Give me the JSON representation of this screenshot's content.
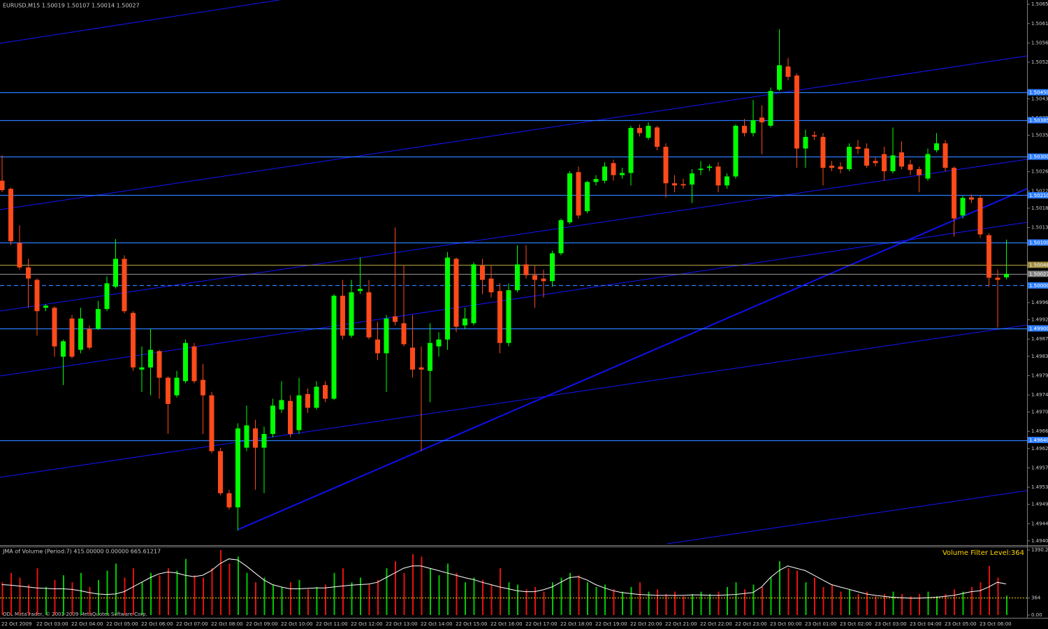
{
  "chart_data": [
    {
      "type": "candlestick",
      "title": "EURUSD,M15 1.50019 1.50107 1.50014 1.50027",
      "categories": [
        "22 Oct 2009",
        null,
        null,
        null,
        "22 Oct 03:00",
        null,
        null,
        null,
        "22 Oct 04:00",
        null,
        null,
        null,
        "22 Oct 05:00",
        null,
        null,
        null,
        "22 Oct 06:00",
        null,
        null,
        null,
        "22 Oct 07:00",
        null,
        null,
        null,
        "22 Oct 08:00",
        null,
        null,
        null,
        "22 Oct 09:00",
        null,
        null,
        null,
        "22 Oct 10:00",
        null,
        null,
        null,
        "22 Oct 11:00",
        null,
        null,
        null,
        "22 Oct 12:00",
        null,
        null,
        null,
        "22 Oct 13:00",
        null,
        null,
        null,
        "22 Oct 14:00",
        null,
        null,
        null,
        "22 Oct 15:00",
        null,
        null,
        null,
        "22 Oct 16:00",
        null,
        null,
        null,
        "22 Oct 17:00",
        null,
        null,
        null,
        "22 Oct 18:00",
        null,
        null,
        null,
        "22 Oct 19:00",
        null,
        null,
        null,
        "22 Oct 20:00",
        null,
        null,
        null,
        "22 Oct 21:00",
        null,
        null,
        null,
        "22 Oct 22:00",
        null,
        null,
        null,
        "22 Oct 23:00",
        null,
        null,
        null,
        "23 Oct 00:00",
        null,
        null,
        null,
        "23 Oct 01:00",
        null,
        null,
        null,
        "23 Oct 02:00",
        null,
        null,
        null,
        "23 Oct 03:00",
        null,
        null,
        null,
        "23 Oct 04:00",
        null,
        null,
        null,
        "23 Oct 05:00",
        null,
        null,
        null,
        "23 Oct 06:00",
        null,
        null,
        null
      ],
      "open": [
        1.50244,
        1.50225,
        1.50099,
        1.50042,
        1.50013,
        1.49948,
        1.49948,
        1.49834,
        1.49923,
        1.4985,
        1.49899,
        1.49899,
        1.49945,
        1.49997,
        1.50062,
        1.49936,
        1.49804,
        1.49809,
        1.49847,
        1.49785,
        1.49744,
        1.49777,
        1.49858,
        1.4978,
        1.49744,
        1.49614,
        1.49516,
        1.49483,
        1.49622,
        1.49667,
        1.49622,
        1.49654,
        1.49711,
        1.49731,
        1.49663,
        1.49747,
        1.49715,
        1.49768,
        1.49736,
        1.49976,
        1.49883,
        1.49987,
        1.49984,
        1.49874,
        1.49842,
        1.49928,
        1.49912,
        1.49855,
        1.49809,
        1.49801,
        1.49858,
        1.49874,
        1.50062,
        1.49907,
        1.49912,
        1.50046,
        1.50016,
        1.49987,
        1.49866,
        1.49989,
        1.50049,
        1.50024,
        1.50016,
        1.5001,
        1.50075,
        1.50147,
        1.50264,
        1.50173,
        1.50241,
        1.50244,
        1.50285,
        1.50257,
        1.50262,
        1.50367,
        1.50344,
        1.50368,
        1.50323,
        1.50238,
        1.50236,
        1.50235,
        1.50269,
        1.50274,
        1.50277,
        1.50233,
        1.50254,
        1.50372,
        1.50355,
        1.50391,
        1.50372,
        1.50456,
        1.5051,
        1.50489,
        1.50319,
        1.5035,
        1.50346,
        1.50279,
        1.50277,
        1.50271,
        1.50323,
        1.50319,
        1.5029,
        1.50306,
        1.50266,
        1.5031,
        1.50282,
        1.50271,
        1.50249,
        1.50315,
        1.50331,
        1.50274,
        1.50163,
        1.50205,
        1.50204,
        1.50117,
        1.50018,
        1.50019
      ],
      "high": [
        1.50303,
        1.50228,
        1.5014,
        1.50062,
        1.50016,
        1.49956,
        1.49951,
        1.49874,
        1.49931,
        1.49948,
        1.49907,
        1.49964,
        1.50021,
        1.50108,
        1.5007,
        1.4994,
        1.49858,
        1.49899,
        1.4985,
        1.49788,
        1.49801,
        1.49874,
        1.49866,
        1.49817,
        1.49752,
        1.49622,
        1.49524,
        1.49679,
        1.4972,
        1.49687,
        1.49671,
        1.49736,
        1.49777,
        1.49744,
        1.49785,
        1.4976,
        1.49777,
        1.49777,
        1.4998,
        1.50013,
        1.50013,
        1.50065,
        1.50013,
        1.49915,
        1.49931,
        1.50135,
        1.50046,
        1.49931,
        1.49858,
        1.49912,
        1.49891,
        1.50078,
        1.50065,
        1.49948,
        1.50054,
        1.50062,
        1.50046,
        1.50005,
        1.50005,
        1.50094,
        1.50094,
        1.50046,
        1.50037,
        1.50081,
        1.50156,
        1.50266,
        1.50277,
        1.50244,
        1.50257,
        1.50287,
        1.50293,
        1.50274,
        1.50372,
        1.50375,
        1.5038,
        1.50372,
        1.50331,
        1.50257,
        1.50249,
        1.50271,
        1.5029,
        1.50282,
        1.50287,
        1.50261,
        1.50375,
        1.50388,
        1.50432,
        1.5042,
        1.50461,
        1.50597,
        1.5053,
        1.50494,
        1.50363,
        1.50359,
        1.50355,
        1.5029,
        1.50287,
        1.50331,
        1.50339,
        1.50331,
        1.50298,
        1.50323,
        1.50368,
        1.50336,
        1.50293,
        1.50277,
        1.50319,
        1.50355,
        1.50339,
        1.50277,
        1.50209,
        1.50212,
        1.50209,
        1.50122,
        1.50037,
        1.50107
      ],
      "low": [
        1.50217,
        1.50094,
        1.50037,
        1.49948,
        1.49883,
        1.4994,
        1.49834,
        1.49768,
        1.4983,
        1.49842,
        1.4985,
        1.49896,
        1.4994,
        1.49993,
        1.49935,
        1.49801,
        1.49752,
        1.49744,
        1.49736,
        1.49654,
        1.49739,
        1.49772,
        1.49772,
        1.49654,
        1.49609,
        1.49511,
        1.49478,
        1.49429,
        1.49614,
        1.49524,
        1.49516,
        1.49646,
        1.49703,
        1.49646,
        1.49654,
        1.49703,
        1.49711,
        1.49728,
        1.49733,
        1.49874,
        1.49878,
        1.4998,
        1.49874,
        1.49826,
        1.49752,
        1.49907,
        1.49858,
        1.49785,
        1.49614,
        1.49728,
        1.49834,
        1.4985,
        1.49891,
        1.49899,
        1.49907,
        1.4998,
        1.49972,
        1.49842,
        1.49858,
        1.49984,
        1.50016,
        1.49948,
        1.49972,
        1.49997,
        1.5007,
        1.50143,
        1.50156,
        1.50168,
        1.50233,
        1.50238,
        1.50244,
        1.50249,
        1.50233,
        1.50347,
        1.50339,
        1.50315,
        1.50205,
        1.50217,
        1.50225,
        1.50192,
        1.50257,
        1.50266,
        1.50217,
        1.50225,
        1.50249,
        1.50347,
        1.50347,
        1.50306,
        1.50368,
        1.50453,
        1.50478,
        1.50274,
        1.50274,
        1.50339,
        1.50233,
        1.50266,
        1.50261,
        1.50266,
        1.50306,
        1.50274,
        1.50277,
        1.50244,
        1.50261,
        1.50271,
        1.50257,
        1.50217,
        1.50244,
        1.5031,
        1.50266,
        1.50114,
        1.50156,
        1.50192,
        1.50111,
        1.49997,
        1.49902,
        1.50014
      ],
      "close": [
        1.50222,
        1.50103,
        1.50042,
        1.50016,
        1.4994,
        1.49953,
        1.49858,
        1.4987,
        1.49834,
        1.49923,
        1.49855,
        1.49945,
        1.50005,
        1.50062,
        1.4994,
        1.49809,
        1.49809,
        1.4985,
        1.49785,
        1.49724,
        1.49785,
        1.49866,
        1.49777,
        1.49744,
        1.49614,
        1.49516,
        1.49483,
        1.49667,
        1.49674,
        1.49622,
        1.49654,
        1.4972,
        1.49733,
        1.49654,
        1.49744,
        1.49715,
        1.49764,
        1.49736,
        1.49976,
        1.49883,
        1.49984,
        1.49992,
        1.49879,
        1.49842,
        1.49923,
        1.49915,
        1.49863,
        1.49804,
        1.49804,
        1.49866,
        1.49874,
        1.50065,
        1.49904,
        1.49923,
        1.50049,
        1.50013,
        1.49984,
        1.49866,
        1.49989,
        1.50049,
        1.50024,
        1.50013,
        1.5001,
        1.50075,
        1.50152,
        1.50261,
        1.50163,
        1.50241,
        1.50248,
        1.50277,
        1.50257,
        1.50262,
        1.50367,
        1.50355,
        1.50372,
        1.50323,
        1.50238,
        1.50233,
        1.50233,
        1.50261,
        1.50272,
        1.50277,
        1.50233,
        1.50254,
        1.50372,
        1.50355,
        1.50385,
        1.5038,
        1.50453,
        1.50513,
        1.50486,
        1.50319,
        1.50346,
        1.50347,
        1.50274,
        1.50274,
        1.50271,
        1.50323,
        1.50318,
        1.50279,
        1.50285,
        1.50266,
        1.50303,
        1.50277,
        1.50269,
        1.50257,
        1.50306,
        1.50331,
        1.50274,
        1.50156,
        1.50204,
        1.502,
        1.50119,
        1.50018,
        1.50013,
        1.50027
      ],
      "up_color": "#00ff00",
      "down_color": "#ff4a1a",
      "ylim": [
        1.49395,
        1.50665
      ],
      "yticks": [
        1.50655,
        {
          "value": 1.5061,
          "label": "1.50610"
        },
        1.50565,
        {
          "value": 1.5052,
          "label": "1.50520"
        },
        1.50435,
        {
          "value": 1.5039,
          "label": "1.50390"
        },
        {
          "value": 1.5035,
          "label": "1.50350"
        },
        1.50265,
        {
          "value": 1.5022,
          "label": "1.50220"
        },
        {
          "value": 1.5018,
          "label": "1.50180"
        },
        1.50135,
        {
          "value": 1.4996,
          "label": "1.49960"
        },
        {
          "value": 1.4992,
          "label": "1.49920"
        },
        1.49875,
        1.49835,
        {
          "value": 1.4979,
          "label": "1.49790"
        },
        1.49745,
        1.49705,
        {
          "value": 1.4966,
          "label": "1.49660"
        },
        {
          "value": 1.4962,
          "label": "1.49620"
        },
        1.49575,
        {
          "value": 1.4953,
          "label": "1.49530"
        },
        {
          "value": 1.4949,
          "label": "1.49490"
        },
        1.49445,
        1.49405
      ],
      "levels": [
        {
          "value": 1.5045,
          "label": "1.50450",
          "color": "#2b7cff"
        },
        {
          "value": 1.50385,
          "label": "1.50385",
          "color": "#2b7cff"
        },
        {
          "value": 1.503,
          "label": "1.50300",
          "color": "#2b7cff"
        },
        {
          "value": 1.5021,
          "label": "1.50210",
          "color": "#2b7cff"
        },
        {
          "value": 1.501,
          "label": "1.50100",
          "color": "#2b7cff"
        },
        {
          "value": 1.50048,
          "label": "1.50048",
          "color": "#9c8a3c"
        },
        {
          "value": 1.50027,
          "label": "1.50027",
          "color": "#7f7f7f"
        },
        {
          "value": 1.5,
          "label": "1.50000",
          "color": "#2b7cff",
          "style": "dashed"
        },
        {
          "value": 1.499,
          "label": "1.49900",
          "color": "#2b7cff"
        },
        {
          "value": 1.4964,
          "label": "1.49640",
          "color": "#2b7cff"
        }
      ]
    },
    {
      "type": "bar",
      "title": "JMA of Volume (Period:7) 415.00000 0.00000 665.61217",
      "values": [
        700,
        900,
        800,
        650,
        1000,
        600,
        750,
        850,
        700,
        900,
        600,
        750,
        950,
        1100,
        800,
        1000,
        700,
        900,
        850,
        1000,
        950,
        1200,
        850,
        800,
        1000,
        1390,
        1100,
        1250,
        900,
        700,
        800,
        650,
        600,
        700,
        750,
        550,
        600,
        650,
        900,
        1000,
        700,
        800,
        650,
        750,
        1000,
        1150,
        900,
        1300,
        1250,
        1000,
        850,
        1100,
        900,
        700,
        800,
        750,
        650,
        1000,
        700,
        650,
        550,
        600,
        500,
        700,
        800,
        900,
        850,
        700,
        600,
        650,
        550,
        500,
        600,
        700,
        500,
        550,
        450,
        500,
        400,
        450,
        500,
        450,
        500,
        600,
        700,
        550,
        650,
        600,
        800,
        1150,
        1000,
        950,
        700,
        800,
        600,
        650,
        500,
        550,
        450,
        500,
        400,
        450,
        500,
        450,
        400,
        450,
        500,
        400,
        450,
        550,
        500,
        600,
        700,
        1050,
        800,
        415
      ],
      "line_values": [
        650,
        640,
        620,
        600,
        580,
        570,
        560,
        560,
        550,
        520,
        480,
        450,
        440,
        450,
        500,
        600,
        700,
        800,
        880,
        920,
        900,
        850,
        820,
        850,
        950,
        1100,
        1200,
        1180,
        1050,
        900,
        750,
        650,
        600,
        560,
        560,
        570,
        580,
        580,
        600,
        620,
        640,
        650,
        660,
        700,
        800,
        900,
        1000,
        1050,
        1050,
        1000,
        950,
        900,
        850,
        800,
        760,
        700,
        650,
        600,
        560,
        520,
        500,
        500,
        540,
        600,
        700,
        800,
        820,
        750,
        650,
        580,
        520,
        480,
        460,
        440,
        430,
        420,
        420,
        420,
        420,
        430,
        430,
        420,
        420,
        430,
        440,
        460,
        480,
        600,
        800,
        950,
        1050,
        1000,
        950,
        850,
        750,
        650,
        600,
        550,
        500,
        450,
        420,
        400,
        380,
        370,
        360,
        360,
        370,
        380,
        400,
        420,
        460,
        500,
        520,
        600,
        700,
        665.61217
      ],
      "line_color": "#ffffff",
      "up_color": "#00c800",
      "down_color": "#e81010",
      "ylim": [
        0,
        1450
      ],
      "yticks": [
        1390.2,
        364,
        {
          "value": 0,
          "label": "0.00"
        }
      ],
      "filter_level": 364,
      "filter_label": "Volume Filter Level:364",
      "filter_color": "#ffd700"
    }
  ],
  "copyright": "ODL MetaTrader, © 2001-2009 MetaQuotes Software Corp."
}
